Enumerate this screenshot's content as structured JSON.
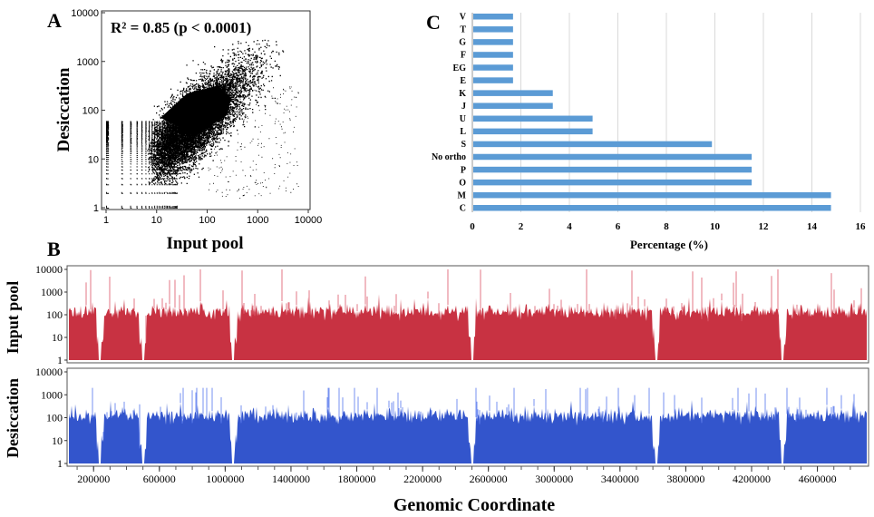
{
  "chart_data": [
    {
      "panel": "A",
      "type": "scatter",
      "annotation": "R² = 0.85 (p < 0.0001)",
      "xlabel": "Input pool",
      "ylabel": "Desiccation",
      "x_scale": "log",
      "y_scale": "log",
      "xlim": [
        1,
        10000
      ],
      "ylim": [
        1,
        10000
      ],
      "x_ticks": [
        "1",
        "10",
        "100",
        "1000",
        "10000"
      ],
      "y_ticks": [
        "1",
        "10",
        "100",
        "1000",
        "10000"
      ]
    },
    {
      "panel": "C",
      "type": "bar",
      "orientation": "horizontal",
      "xlabel": "Percentage (%)",
      "xlim": [
        0,
        16
      ],
      "x_ticks": [
        "0",
        "2",
        "4",
        "6",
        "8",
        "10",
        "12",
        "14",
        "16"
      ],
      "categories": [
        "V",
        "T",
        "G",
        "F",
        "EG",
        "E",
        "K",
        "J",
        "U",
        "L",
        "S",
        "No ortho",
        "P",
        "O",
        "M",
        "C"
      ],
      "values": [
        1.64,
        1.64,
        1.64,
        1.64,
        1.64,
        1.64,
        3.28,
        3.28,
        4.92,
        4.92,
        9.84,
        11.48,
        11.48,
        11.48,
        14.75,
        14.75
      ],
      "color": "#5b9bd5"
    },
    {
      "panel": "B",
      "type": "area",
      "xlabel": "Genomic Coordinate",
      "x_ticks": [
        "200000",
        "600000",
        "1000000",
        "1400000",
        "1800000",
        "2200000",
        "2600000",
        "3000000",
        "3400000",
        "3800000",
        "4200000",
        "4600000"
      ],
      "x_tick_values": [
        200000,
        600000,
        1000000,
        1400000,
        1800000,
        2200000,
        2600000,
        3000000,
        3400000,
        3800000,
        4200000,
        4600000
      ],
      "xlim": [
        50000,
        4900000
      ],
      "y_scale": "log",
      "y_ticks": [
        "10000",
        "1000",
        "100",
        "10",
        "1"
      ],
      "series": [
        {
          "name": "Input pool",
          "color": "#c83242",
          "typical_level": 200,
          "peak_level": 10000
        },
        {
          "name": "Desiccation",
          "color": "#3355cc",
          "typical_level": 180,
          "peak_level": 2000
        }
      ],
      "dips": [
        240000,
        500000,
        1050000,
        2500000,
        3620000,
        4390000
      ]
    }
  ],
  "labels": {
    "A": "A",
    "B": "B",
    "C": "C"
  }
}
